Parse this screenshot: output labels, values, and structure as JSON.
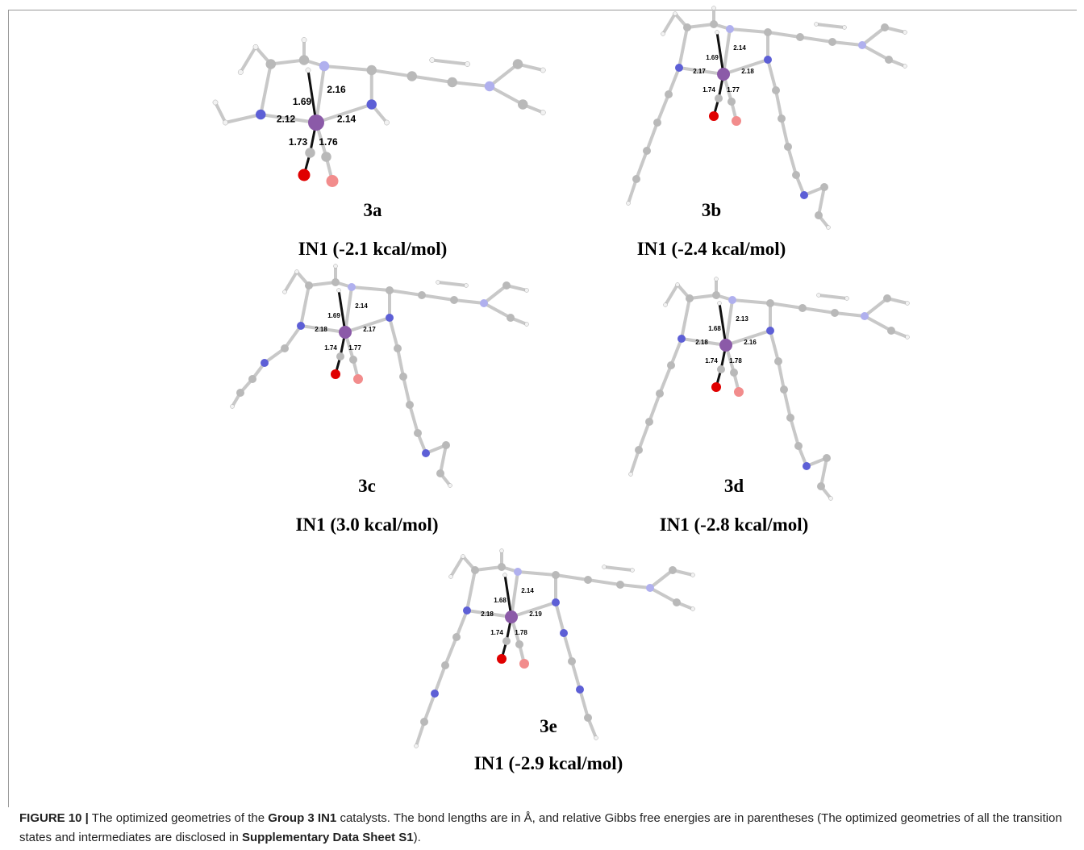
{
  "panels": [
    {
      "label": "3a",
      "energy": "IN1 (-2.1 kcal/mol)",
      "bonds": [
        "1.69",
        "2.16",
        "2.12",
        "2.14",
        "1.73",
        "1.76"
      ]
    },
    {
      "label": "3b",
      "energy": "IN1 (-2.4 kcal/mol)",
      "bonds": [
        "1.69",
        "2.14",
        "2.17",
        "2.18",
        "1.74",
        "1.77"
      ]
    },
    {
      "label": "3c",
      "energy": "IN1 (3.0 kcal/mol)",
      "bonds": [
        "1.69",
        "2.14",
        "2.18",
        "2.17",
        "1.74",
        "1.77"
      ]
    },
    {
      "label": "3d",
      "energy": "IN1 (-2.8 kcal/mol)",
      "bonds": [
        "1.68",
        "2.13",
        "2.18",
        "2.16",
        "1.74",
        "1.78"
      ]
    },
    {
      "label": "3e",
      "energy": "IN1 (-2.9 kcal/mol)",
      "bonds": [
        "1.68",
        "2.14",
        "2.18",
        "2.19",
        "1.74",
        "1.78"
      ]
    }
  ],
  "caption": [
    "FIGURE 10 |",
    "The optimized geometries of the",
    "Group 3 IN1",
    "catalysts. The bond lengths are in Å, and relative Gibbs free energies are in parentheses (The optimized geometries of all the transition states and intermediates are disclosed in",
    "Supplementary Data Sheet S1",
    ")."
  ]
}
